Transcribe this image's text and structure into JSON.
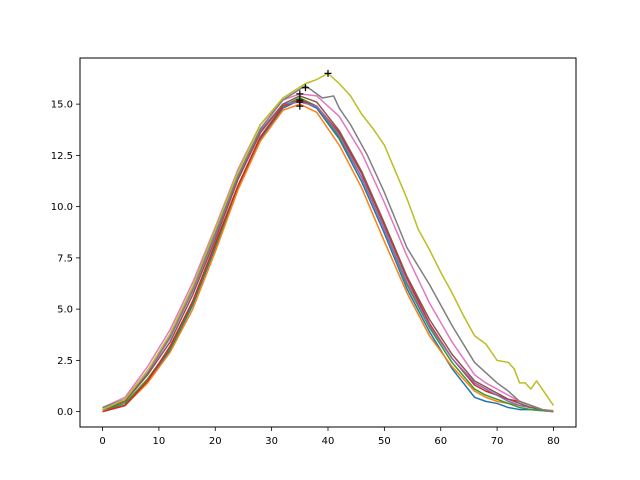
{
  "chart_data": {
    "type": "line",
    "title": "",
    "xlabel": "",
    "ylabel": "",
    "xlim": [
      -4,
      84
    ],
    "ylim": [
      -0.75,
      17.25
    ],
    "grid": false,
    "legend": "none",
    "x_ticks": [
      0,
      10,
      20,
      30,
      40,
      50,
      60,
      70,
      80
    ],
    "y_ticks": [
      0.0,
      2.5,
      5.0,
      7.5,
      10.0,
      12.5,
      15.0
    ],
    "x_tick_labels": [
      "0",
      "10",
      "20",
      "30",
      "40",
      "50",
      "60",
      "70",
      "80"
    ],
    "y_tick_labels": [
      "0.0",
      "2.5",
      "5.0",
      "7.5",
      "10.0",
      "12.5",
      "15.0"
    ],
    "series": [
      {
        "color": "#1f77b4",
        "x": [
          0,
          4,
          8,
          12,
          16,
          20,
          24,
          28,
          32,
          35,
          38,
          42,
          46,
          50,
          54,
          58,
          62,
          66,
          68,
          70,
          72,
          74,
          76,
          78,
          80
        ],
        "values": [
          0.1,
          0.3,
          1.5,
          3.0,
          5.2,
          8.0,
          10.9,
          13.3,
          14.8,
          15.2,
          14.8,
          13.3,
          11.2,
          8.7,
          6.0,
          3.9,
          2.1,
          0.7,
          0.5,
          0.4,
          0.2,
          0.1,
          0.1,
          0.05,
          0.0
        ]
      },
      {
        "color": "#ff7f0e",
        "x": [
          0,
          4,
          8,
          12,
          16,
          20,
          24,
          28,
          32,
          35,
          38,
          42,
          46,
          50,
          54,
          58,
          62,
          66,
          68,
          70,
          72,
          74,
          76,
          78,
          80
        ],
        "values": [
          0.0,
          0.3,
          1.4,
          2.9,
          5.0,
          7.8,
          10.8,
          13.2,
          14.7,
          15.0,
          14.6,
          13.0,
          10.9,
          8.3,
          5.8,
          3.7,
          2.2,
          1.0,
          0.7,
          0.5,
          0.4,
          0.3,
          0.2,
          0.1,
          0.05
        ]
      },
      {
        "color": "#2ca02c",
        "x": [
          0,
          4,
          8,
          12,
          16,
          20,
          24,
          28,
          32,
          35,
          38,
          42,
          46,
          50,
          54,
          58,
          62,
          66,
          68,
          70,
          72,
          74,
          76,
          78,
          80
        ],
        "values": [
          0.1,
          0.4,
          1.6,
          3.1,
          5.3,
          8.1,
          11.0,
          13.4,
          14.9,
          15.3,
          14.9,
          13.4,
          11.4,
          8.9,
          6.2,
          4.1,
          2.4,
          1.1,
          0.8,
          0.6,
          0.4,
          0.2,
          0.1,
          0.05,
          0.0
        ]
      },
      {
        "color": "#d62728",
        "x": [
          0,
          4,
          8,
          12,
          16,
          20,
          24,
          28,
          32,
          35,
          38,
          42,
          46,
          50,
          54,
          58,
          62,
          66,
          68,
          70,
          72,
          74,
          76,
          78,
          80
        ],
        "values": [
          0.0,
          0.3,
          1.5,
          3.2,
          5.4,
          8.2,
          11.0,
          13.4,
          14.9,
          15.2,
          14.9,
          13.6,
          11.6,
          9.1,
          6.5,
          4.3,
          2.6,
          1.3,
          1.0,
          0.8,
          0.6,
          0.5,
          0.3,
          0.1,
          0.0
        ]
      },
      {
        "color": "#9467bd",
        "x": [
          0,
          4,
          8,
          12,
          16,
          20,
          24,
          28,
          32,
          35,
          38,
          42,
          46,
          50,
          54,
          58,
          62,
          66,
          68,
          70,
          72,
          74,
          76,
          78,
          80
        ],
        "values": [
          0.2,
          0.5,
          1.9,
          3.6,
          5.9,
          8.6,
          11.4,
          13.7,
          15.0,
          15.1,
          14.9,
          13.5,
          11.4,
          8.9,
          6.3,
          4.2,
          2.6,
          1.4,
          1.1,
          0.8,
          0.5,
          0.3,
          0.2,
          0.1,
          0.0
        ]
      },
      {
        "color": "#8c564b",
        "x": [
          0,
          4,
          8,
          12,
          16,
          20,
          24,
          28,
          32,
          35,
          38,
          42,
          46,
          50,
          54,
          58,
          62,
          66,
          68,
          70,
          72,
          74,
          76,
          78,
          80
        ],
        "values": [
          0.1,
          0.5,
          1.8,
          3.4,
          5.7,
          8.4,
          11.3,
          13.6,
          15.0,
          15.4,
          15.1,
          13.7,
          11.7,
          9.2,
          6.6,
          4.5,
          2.8,
          1.5,
          1.2,
          0.9,
          0.6,
          0.4,
          0.2,
          0.1,
          0.0
        ]
      },
      {
        "color": "#e377c2",
        "x": [
          0,
          4,
          8,
          12,
          16,
          20,
          24,
          28,
          32,
          35,
          38,
          42,
          46,
          50,
          54,
          58,
          62,
          66,
          68,
          70,
          72,
          74,
          76,
          78,
          80
        ],
        "values": [
          0.2,
          0.7,
          2.2,
          4.0,
          6.3,
          9.0,
          11.8,
          14.0,
          15.2,
          15.5,
          15.4,
          14.4,
          12.6,
          10.2,
          7.6,
          5.3,
          3.4,
          1.8,
          1.4,
          1.1,
          0.8,
          0.5,
          0.3,
          0.1,
          0.0
        ]
      },
      {
        "color": "#7f7f7f",
        "x": [
          0,
          4,
          8,
          12,
          16,
          20,
          24,
          28,
          32,
          36,
          37,
          39,
          41,
          42,
          44,
          47,
          50,
          54,
          58,
          62,
          66,
          70,
          72,
          74,
          76,
          78,
          80
        ],
        "values": [
          0.2,
          0.6,
          2.0,
          3.7,
          6.0,
          8.7,
          11.5,
          13.8,
          15.2,
          15.9,
          15.7,
          15.3,
          15.4,
          14.8,
          14.0,
          12.5,
          10.7,
          8.0,
          6.2,
          4.2,
          2.4,
          1.4,
          1.0,
          0.5,
          0.3,
          0.1,
          0.0
        ]
      },
      {
        "color": "#bcbd22",
        "x": [
          0,
          4,
          8,
          12,
          16,
          20,
          24,
          28,
          32,
          36,
          38,
          40,
          42,
          44,
          46,
          48,
          50,
          52,
          54,
          56,
          58,
          60,
          62,
          64,
          66,
          68,
          70,
          72,
          73,
          74,
          75,
          76,
          77,
          78,
          80
        ],
        "values": [
          0.1,
          0.6,
          2.0,
          3.8,
          6.1,
          8.9,
          11.7,
          14.0,
          15.3,
          16.0,
          16.2,
          16.5,
          16.0,
          15.4,
          14.5,
          13.8,
          13.0,
          11.7,
          10.4,
          8.9,
          7.9,
          6.8,
          5.8,
          4.7,
          3.7,
          3.3,
          2.5,
          2.4,
          2.1,
          1.4,
          1.4,
          1.1,
          1.5,
          1.1,
          0.3
        ]
      }
    ],
    "peak_markers": [
      {
        "x": 35,
        "y": 14.9
      },
      {
        "x": 35,
        "y": 15.1
      },
      {
        "x": 35,
        "y": 15.2
      },
      {
        "x": 35,
        "y": 15.5
      },
      {
        "x": 36,
        "y": 15.8
      },
      {
        "x": 40,
        "y": 16.5
      }
    ]
  }
}
